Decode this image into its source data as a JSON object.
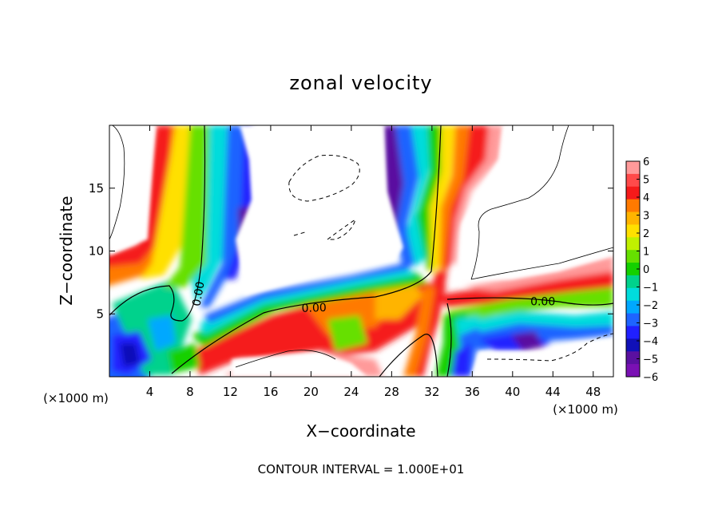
{
  "chart_data": {
    "type": "heatmap",
    "title": "zonal velocity",
    "xlabel": "X−coordinate",
    "ylabel": "Z−coordinate",
    "x_units_left": "(×1000 m)",
    "x_units_right": "(×1000 m)",
    "footer": "CONTOUR INTERVAL = 1.000E+01",
    "xlim": [
      0,
      50
    ],
    "ylim": [
      0,
      20
    ],
    "x_ticks": [
      4,
      8,
      12,
      16,
      20,
      24,
      28,
      32,
      36,
      40,
      44,
      48
    ],
    "y_ticks": [
      5,
      10,
      15
    ],
    "colorbar": {
      "ticks": [
        6,
        5,
        4,
        3,
        2,
        1,
        0,
        -1,
        -2,
        -3,
        -4,
        -5,
        -6
      ],
      "tick_labels": [
        "6",
        "5",
        "4",
        "3",
        "2",
        "1",
        "0",
        "−1",
        "−2",
        "−3",
        "−4",
        "−5",
        "−6"
      ],
      "colors": [
        "#ff9a9a",
        "#ff4a4a",
        "#f51a1a",
        "#ff7a00",
        "#ffb400",
        "#ffe000",
        "#c0f000",
        "#66e000",
        "#14d000",
        "#00d28c",
        "#00dcdc",
        "#00a8ff",
        "#1e64ff",
        "#2020ff",
        "#1010b8",
        "#5a10a0",
        "#7a10b4"
      ]
    },
    "contour_labels": [
      {
        "text": "0.00",
        "x": 8.8,
        "y": 6.6,
        "rotation": -80
      },
      {
        "text": "0.00",
        "x": 20.3,
        "y": 5.5,
        "rotation": -2
      },
      {
        "text": "0.00",
        "x": 43.0,
        "y": 6.0,
        "rotation": 0
      }
    ]
  }
}
